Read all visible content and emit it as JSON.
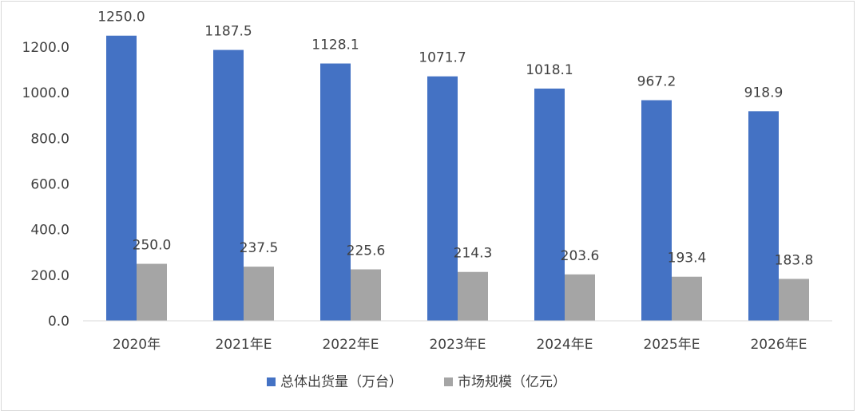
{
  "chart_data": {
    "type": "bar",
    "title": "",
    "xlabel": "",
    "ylabel": "",
    "categories": [
      "2020年",
      "2021年E",
      "2022年E",
      "2023年E",
      "2024年E",
      "2025年E",
      "2026年E"
    ],
    "series": [
      {
        "name": "总体出货量（万台）",
        "color": "#4472c4",
        "values": [
          1250.0,
          1187.5,
          1128.1,
          1071.7,
          1018.1,
          967.2,
          918.9
        ]
      },
      {
        "name": "市场规模（亿元）",
        "color": "#a5a5a5",
        "values": [
          250.0,
          237.5,
          225.6,
          214.3,
          203.6,
          193.4,
          183.8
        ]
      }
    ],
    "ylim": [
      0,
      1200
    ],
    "yticks": [
      "0.0",
      "200.0",
      "400.0",
      "600.0",
      "800.0",
      "1000.0",
      "1200.0"
    ],
    "grid": false,
    "legend_position": "bottom"
  }
}
